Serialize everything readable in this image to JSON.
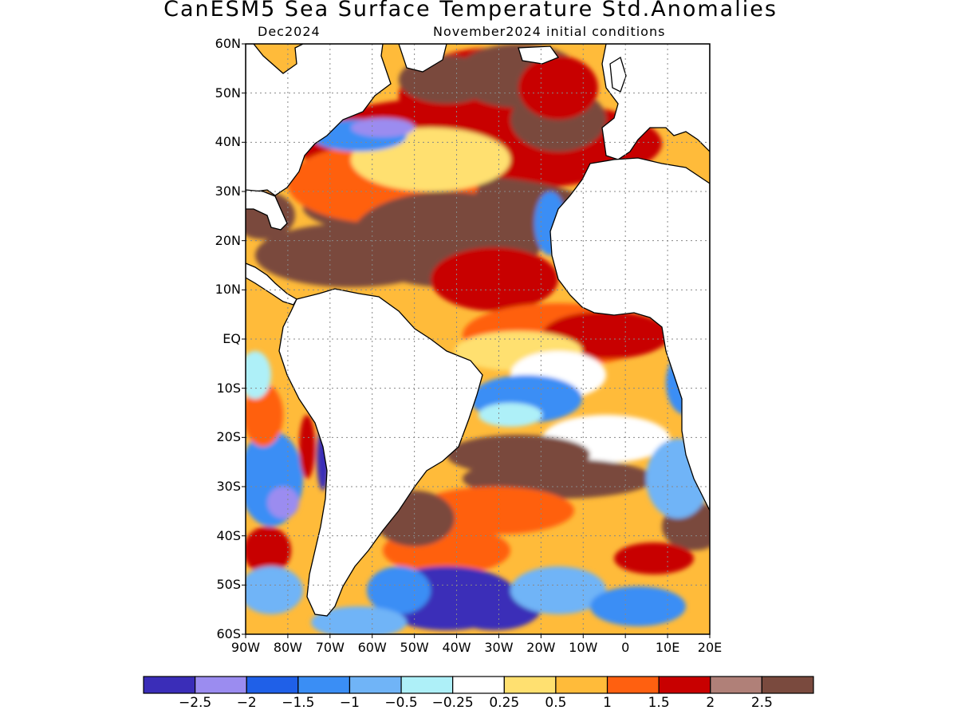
{
  "title": "CanESM5 Sea Surface Temperature Std.Anomalies",
  "subtitle_left": "Dec2024",
  "subtitle_right": "November2024 initial conditions",
  "map": {
    "lon_range": [
      -90,
      20
    ],
    "lat_range": [
      -60,
      60
    ],
    "lat_labels": [
      "60N",
      "50N",
      "40N",
      "30N",
      "20N",
      "10N",
      "EQ",
      "10S",
      "20S",
      "30S",
      "40S",
      "50S",
      "60S"
    ],
    "lon_labels": [
      "90W",
      "80W",
      "70W",
      "60W",
      "50W",
      "40W",
      "30W",
      "20W",
      "10W",
      "0",
      "10E",
      "20E"
    ],
    "grid": true,
    "land_color": "#ffffff",
    "coastline_color": "#000000"
  },
  "colorbar": {
    "colors": [
      "#3a2db8",
      "#9b8cf0",
      "#1f60e8",
      "#3a8ef5",
      "#70b4f7",
      "#aef0f8",
      "#ffffff",
      "#ffe070",
      "#ffbb3a",
      "#ff6010",
      "#c80000",
      "#b08078",
      "#7a4a3e"
    ],
    "labels": [
      "-2.5",
      "-2",
      "-1.5",
      "-1",
      "-0.5",
      "-0.25",
      "0.25",
      "0.5",
      "1",
      "1.5",
      "2",
      "2.5"
    ]
  }
}
